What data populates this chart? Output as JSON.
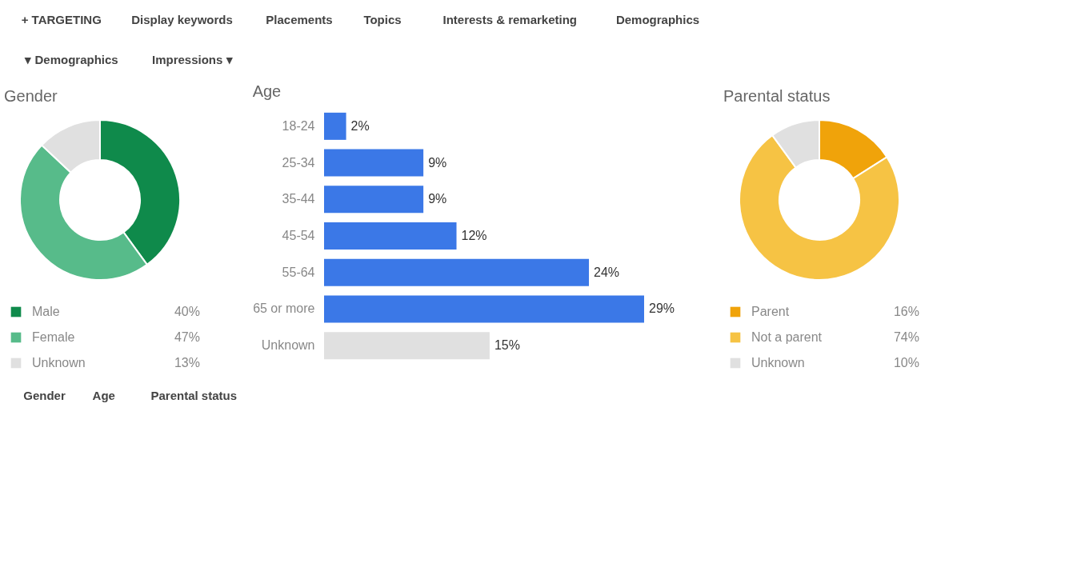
{
  "chart_data": [
    {
      "type": "other",
      "annotations": [
        "+ TARGETING",
        "Display keywords",
        "Placements",
        "Topics",
        "Interests & remarketing",
        "Demographics"
      ]
    },
    {
      "type": "other",
      "annotations": [
        "▾ Demographics",
        "Impressions ▾"
      ]
    },
    {
      "type": "donut",
      "title": "Gender",
      "categories": [
        "Male",
        "Female",
        "Unknown"
      ],
      "values": [
        40,
        47,
        13
      ],
      "colors": [
        "#0f8a4b",
        "#57bb8a",
        "#e0e0e0"
      ],
      "legend": "bottom",
      "value_labels": [
        "40%",
        "47%",
        "13%"
      ]
    },
    {
      "type": "bar",
      "title": "Age",
      "orientation": "horizontal",
      "categories": [
        "18-24",
        "25-34",
        "35-44",
        "45-54",
        "55-64",
        "65 or more",
        "Unknown"
      ],
      "values": [
        2,
        9,
        9,
        12,
        24,
        29,
        15
      ],
      "colors": [
        "#3b78e7",
        "#3b78e7",
        "#3b78e7",
        "#3b78e7",
        "#3b78e7",
        "#3b78e7",
        "#e0e0e0"
      ],
      "value_labels": [
        "2%",
        "9%",
        "9%",
        "12%",
        "24%",
        "29%",
        "15%"
      ]
    },
    {
      "type": "donut",
      "title": "Parental status",
      "categories": [
        "Parent",
        "Not a parent",
        "Unknown"
      ],
      "values": [
        16,
        74,
        10
      ],
      "colors": [
        "#f0a30a",
        "#f6c344",
        "#e0e0e0"
      ],
      "legend": "bottom",
      "value_labels": [
        "16%",
        "74%",
        "10%"
      ]
    },
    {
      "type": "other",
      "annotations": [
        "Gender",
        "Age",
        "Parental status"
      ]
    }
  ]
}
